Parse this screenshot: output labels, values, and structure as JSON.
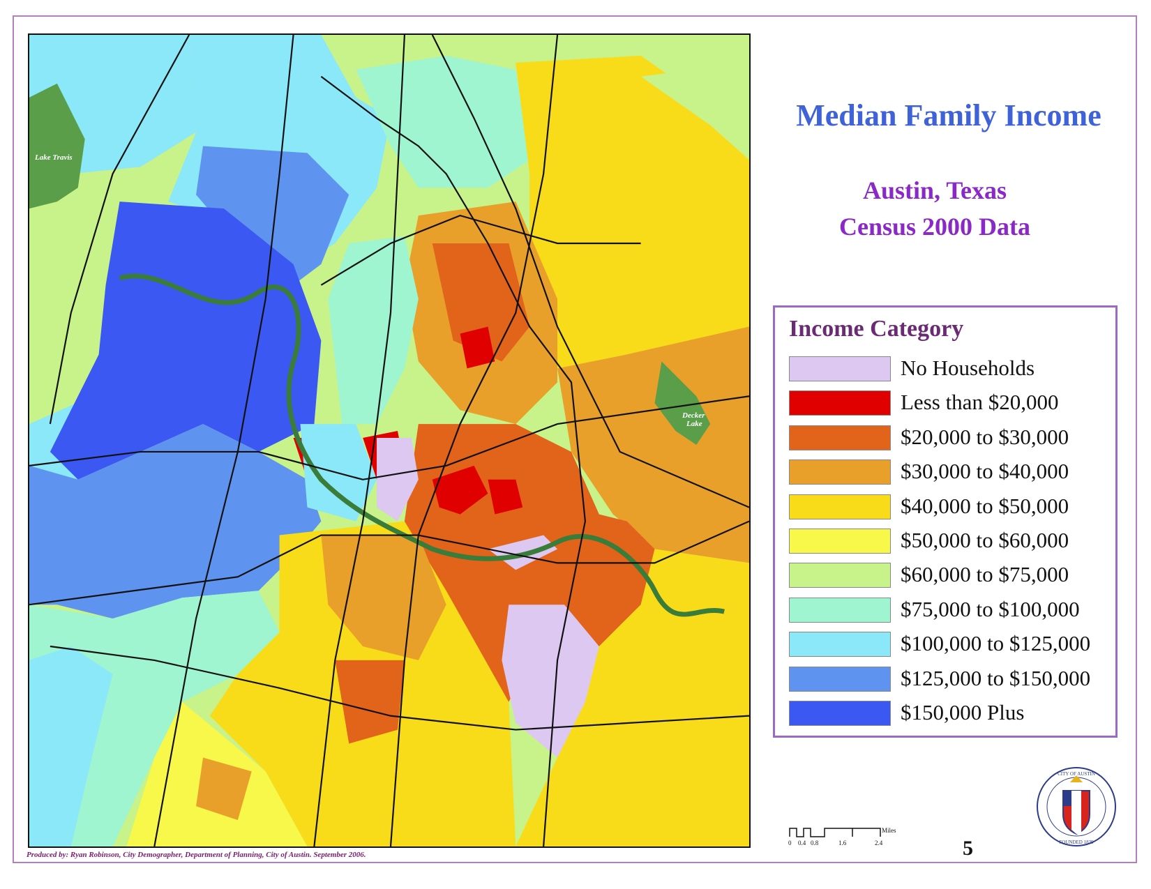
{
  "title": "Median Family Income",
  "subtitle_line1": "Austin, Texas",
  "subtitle_line2": "Census 2000 Data",
  "legend": {
    "title": "Income Category",
    "items": [
      {
        "label": "No Households",
        "color": "#ddc8f2"
      },
      {
        "label": "Less than $20,000",
        "color": "#e00000"
      },
      {
        "label": "$20,000 to $30,000",
        "color": "#e2631a"
      },
      {
        "label": "$30,000 to $40,000",
        "color": "#e8a02a"
      },
      {
        "label": "$40,000 to $50,000",
        "color": "#f8dc1a"
      },
      {
        "label": "$50,000 to $60,000",
        "color": "#f7f84a"
      },
      {
        "label": "$60,000 to $75,000",
        "color": "#c8f28a"
      },
      {
        "label": "$75,000 to $100,000",
        "color": "#9ff5cf"
      },
      {
        "label": "$100,000 to $125,000",
        "color": "#8ae8f8"
      },
      {
        "label": "$125,000 to $150,000",
        "color": "#5e94ef"
      },
      {
        "label": "$150,000 Plus",
        "color": "#3b58f2"
      }
    ]
  },
  "map_labels": {
    "lake_travis": "Lake Travis",
    "decker_lake_1": "Decker",
    "decker_lake_2": "Lake"
  },
  "scale": {
    "ticks": [
      "0",
      "0.4",
      "0.8",
      "1.6",
      "2.4"
    ],
    "unit": "Miles"
  },
  "page_number": "5",
  "credit": "Produced by:  Ryan Robinson, City Demographer, Department of Planning,  City of Austin.  September 2006.",
  "seal_text_top": "CITY OF AUSTIN",
  "seal_text_bottom": "FOUNDED 1839"
}
